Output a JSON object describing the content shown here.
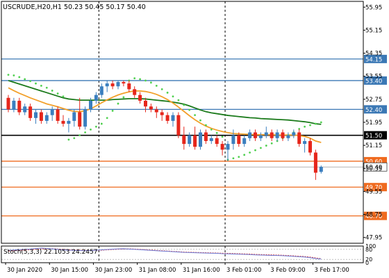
{
  "chart_title": "USCRUDE,H20,H1  50.23 50.45 50.17 50.40",
  "colors": {
    "up": "#3b7fbf",
    "down": "#e6261b",
    "ma_fast": "#f2a02a",
    "ma_slow": "#1b7a1b",
    "psar": "#4fd04f",
    "hline_blue": "#3b78b5",
    "hline_orange": "#ef6a1e",
    "hline_black": "#000000",
    "stoch_main": "#6d7bd6",
    "stoch_signal": "#d43a3a"
  },
  "chart_data": {
    "type": "candlestick",
    "symbol": "USCRUDE",
    "timeframe": "H1",
    "ohlc_header": {
      "open": 50.23,
      "high": 50.45,
      "low": 50.17,
      "close": 50.4
    },
    "y_ticks": [
      55.95,
      55.15,
      54.35,
      53.55,
      52.75,
      51.95,
      51.15,
      50.35,
      49.55,
      48.75,
      47.95
    ],
    "ylim": [
      47.75,
      56.15
    ],
    "x_ticks": [
      "30 Jan 2020",
      "30 Jan 15:00",
      "30 Jan 23:00",
      "31 Jan 08:00",
      "31 Jan 16:00",
      "3 Feb 01:00",
      "3 Feb 09:00",
      "3 Feb 17:00"
    ],
    "x_tick_index": [
      0,
      8,
      16,
      24,
      32,
      40,
      48,
      56
    ],
    "session_separators": [
      17,
      40
    ],
    "levels": [
      {
        "value": 54.15,
        "label": "54.15",
        "color": "blue"
      },
      {
        "value": 53.4,
        "label": "53.40",
        "color": "blue"
      },
      {
        "value": 52.4,
        "label": "52.40",
        "color": "blue"
      },
      {
        "value": 51.5,
        "label": "51.50",
        "color": "black"
      },
      {
        "value": 50.6,
        "label": "50.60",
        "color": "orange"
      },
      {
        "value": 49.7,
        "label": "49.70",
        "color": "orange"
      },
      {
        "value": 48.7,
        "label": "48.70",
        "color": "orange"
      }
    ],
    "current_price": {
      "value": 50.4,
      "label": "50.40"
    },
    "candles": [
      [
        52.8,
        52.9,
        52.3,
        52.4
      ],
      [
        52.4,
        52.8,
        52.3,
        52.7
      ],
      [
        52.7,
        52.8,
        52.2,
        52.3
      ],
      [
        52.3,
        52.6,
        52.2,
        52.5
      ],
      [
        52.5,
        52.6,
        52.0,
        52.1
      ],
      [
        52.1,
        52.4,
        51.9,
        52.3
      ],
      [
        52.3,
        52.4,
        51.9,
        52.0
      ],
      [
        52.0,
        52.3,
        51.9,
        52.2
      ],
      [
        52.2,
        52.5,
        52.0,
        52.4
      ],
      [
        52.4,
        52.5,
        51.9,
        52.0
      ],
      [
        52.0,
        52.2,
        51.8,
        51.9
      ],
      [
        51.9,
        52.1,
        51.6,
        52.0
      ],
      [
        52.0,
        52.4,
        51.8,
        52.3
      ],
      [
        52.3,
        52.8,
        51.7,
        51.8
      ],
      [
        51.8,
        52.5,
        51.7,
        52.4
      ],
      [
        52.4,
        52.8,
        52.3,
        52.7
      ],
      [
        52.7,
        53.0,
        52.6,
        52.9
      ],
      [
        52.9,
        53.3,
        52.8,
        53.2
      ],
      [
        53.2,
        53.4,
        53.0,
        53.3
      ],
      [
        53.3,
        53.4,
        53.1,
        53.2
      ],
      [
        53.2,
        53.4,
        53.1,
        53.35
      ],
      [
        53.35,
        53.4,
        53.2,
        53.3
      ],
      [
        53.3,
        53.4,
        53.0,
        53.1
      ],
      [
        53.1,
        53.2,
        52.8,
        52.9
      ],
      [
        52.9,
        53.0,
        52.6,
        52.7
      ],
      [
        52.7,
        52.8,
        52.3,
        52.5
      ],
      [
        52.5,
        52.6,
        52.3,
        52.4
      ],
      [
        52.4,
        52.5,
        52.1,
        52.3
      ],
      [
        52.3,
        52.4,
        52.0,
        52.2
      ],
      [
        52.2,
        52.3,
        51.9,
        52.0
      ],
      [
        52.0,
        52.3,
        51.8,
        52.2
      ],
      [
        52.2,
        52.3,
        51.4,
        51.5
      ],
      [
        51.5,
        51.8,
        51.0,
        51.2
      ],
      [
        51.2,
        51.6,
        51.1,
        51.5
      ],
      [
        51.5,
        51.8,
        51.0,
        51.1
      ],
      [
        51.1,
        51.7,
        51.0,
        51.6
      ],
      [
        51.6,
        51.7,
        51.2,
        51.3
      ],
      [
        51.3,
        51.5,
        51.2,
        51.4
      ],
      [
        51.4,
        51.5,
        51.1,
        51.2
      ],
      [
        51.2,
        51.3,
        50.8,
        51.0
      ],
      [
        51.0,
        51.3,
        50.6,
        51.2
      ],
      [
        51.2,
        51.7,
        51.0,
        51.5
      ],
      [
        51.5,
        51.6,
        51.1,
        51.2
      ],
      [
        51.2,
        51.5,
        51.1,
        51.4
      ],
      [
        51.4,
        51.7,
        51.3,
        51.6
      ],
      [
        51.6,
        51.7,
        51.3,
        51.4
      ],
      [
        51.4,
        51.6,
        51.3,
        51.5
      ],
      [
        51.5,
        51.8,
        51.4,
        51.6
      ],
      [
        51.6,
        51.7,
        51.3,
        51.4
      ],
      [
        51.4,
        51.7,
        51.3,
        51.6
      ],
      [
        51.6,
        51.7,
        51.3,
        51.4
      ],
      [
        51.4,
        51.6,
        51.3,
        51.5
      ],
      [
        51.5,
        51.7,
        51.4,
        51.6
      ],
      [
        51.6,
        51.7,
        51.1,
        51.2
      ],
      [
        51.2,
        51.4,
        50.9,
        51.3
      ],
      [
        51.3,
        51.4,
        50.8,
        50.9
      ],
      [
        50.9,
        51.0,
        49.95,
        50.2
      ],
      [
        50.23,
        50.45,
        50.17,
        50.4
      ]
    ],
    "ma_fast": [
      53.15,
      53.05,
      52.96,
      52.88,
      52.8,
      52.73,
      52.66,
      52.59,
      52.54,
      52.49,
      52.43,
      52.37,
      52.33,
      52.32,
      52.35,
      52.42,
      52.52,
      52.63,
      52.73,
      52.82,
      52.9,
      52.96,
      53.01,
      53.04,
      53.04,
      53.02,
      52.98,
      52.92,
      52.84,
      52.74,
      52.62,
      52.48,
      52.33,
      52.18,
      52.04,
      51.92,
      51.82,
      51.74,
      51.68,
      51.63,
      51.59,
      51.56,
      51.55,
      51.54,
      51.53,
      51.52,
      51.52,
      51.52,
      51.52,
      51.51,
      51.51,
      51.51,
      51.51,
      51.49,
      51.46,
      51.4,
      51.3,
      51.25
    ],
    "ma_slow": [
      53.4,
      53.34,
      53.28,
      53.22,
      53.16,
      53.1,
      53.04,
      52.98,
      52.92,
      52.86,
      52.8,
      52.76,
      52.74,
      52.72,
      52.72,
      52.72,
      52.72,
      52.72,
      52.72,
      52.74,
      52.75,
      52.76,
      52.77,
      52.77,
      52.77,
      52.76,
      52.74,
      52.72,
      52.7,
      52.68,
      52.65,
      52.62,
      52.58,
      52.52,
      52.45,
      52.38,
      52.32,
      52.28,
      52.25,
      52.22,
      52.19,
      52.17,
      52.15,
      52.13,
      52.11,
      52.1,
      52.08,
      52.07,
      52.06,
      52.05,
      52.04,
      52.03,
      52.01,
      51.99,
      51.97,
      51.94,
      51.9,
      51.88
    ],
    "psar": [
      53.6,
      53.58,
      53.52,
      53.45,
      53.38,
      53.3,
      53.22,
      53.15,
      53.05,
      52.95,
      52.85,
      51.35,
      51.4,
      51.5,
      51.6,
      51.7,
      51.8,
      51.9,
      52.1,
      52.35,
      52.6,
      52.82,
      53.4,
      53.48,
      53.45,
      53.4,
      53.33,
      53.22,
      53.1,
      52.98,
      52.85,
      52.72,
      52.55,
      52.38,
      52.2,
      52.02,
      51.85,
      51.7,
      51.58,
      51.45,
      50.65,
      50.7,
      50.75,
      50.82,
      50.9,
      50.98,
      51.06,
      51.14,
      51.22,
      51.3,
      51.4,
      51.5,
      51.6,
      51.72,
      51.8,
      51.85,
      51.9,
      51.95
    ],
    "stochastic": {
      "label": "Stoch(5,3,3) 22.1053 24.2457",
      "params": "5,3,3",
      "main": 22.1053,
      "signal": 24.2457,
      "levels": [
        80,
        20
      ],
      "y_labels": [
        "100",
        "80",
        "20",
        "0"
      ],
      "main_series": [
        74,
        76,
        78,
        80,
        82,
        85,
        88,
        86,
        83,
        80,
        77,
        75,
        74,
        73,
        72,
        73,
        75,
        77,
        79,
        81,
        83,
        84,
        82,
        80,
        78,
        76,
        74,
        72,
        70,
        68,
        66,
        64,
        62,
        61,
        60,
        59,
        58,
        57,
        56,
        54,
        53,
        52,
        51,
        50,
        49,
        47,
        46,
        45,
        44,
        43,
        42,
        40,
        38,
        36,
        34,
        30,
        25,
        22
      ],
      "signal_series": [
        70,
        72,
        74,
        76,
        78,
        80,
        82,
        84,
        84,
        82,
        80,
        78,
        76,
        75,
        74,
        73,
        74,
        75,
        77,
        79,
        81,
        82,
        83,
        82,
        80,
        78,
        76,
        74,
        72,
        70,
        68,
        66,
        64,
        63,
        62,
        61,
        60,
        59,
        58,
        57,
        56,
        55,
        54,
        53,
        52,
        50,
        49,
        48,
        47,
        46,
        45,
        43,
        41,
        39,
        37,
        34,
        29,
        24
      ]
    }
  }
}
